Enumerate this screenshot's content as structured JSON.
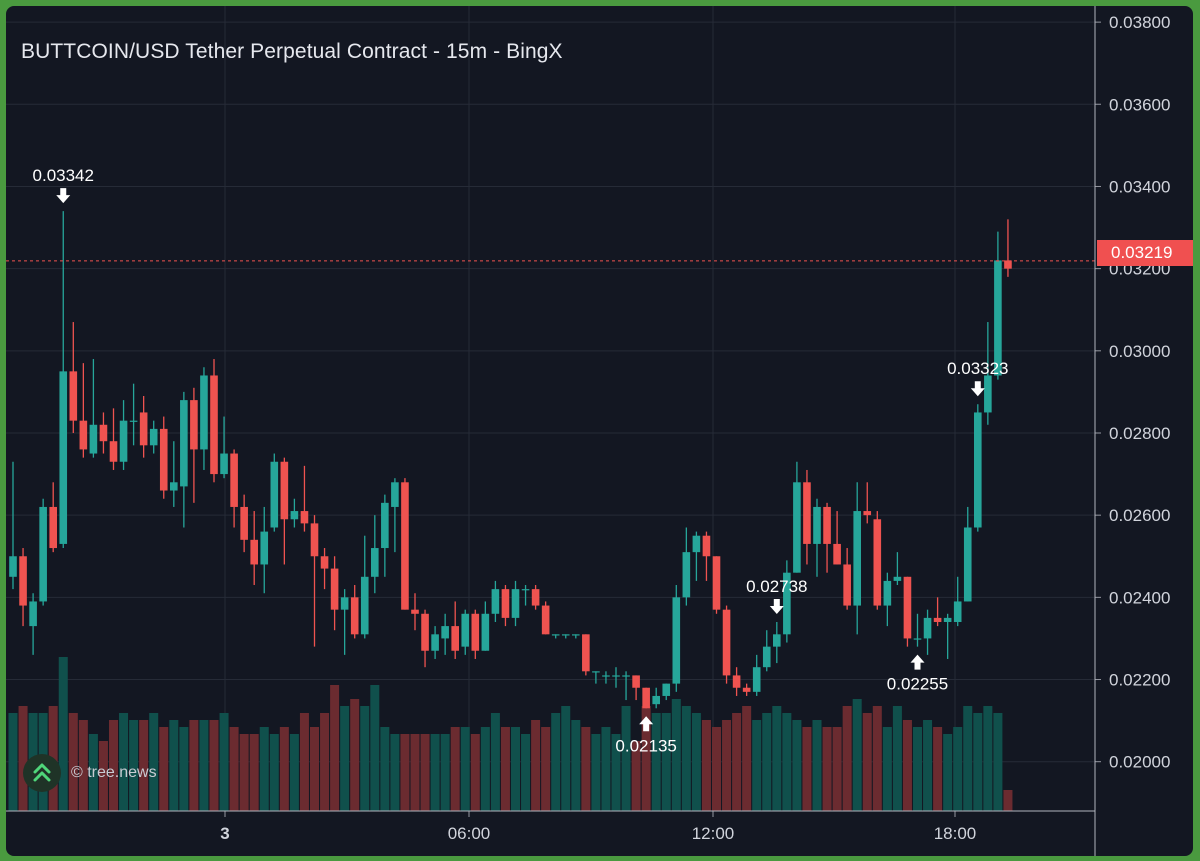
{
  "title": "BUTTCOIN/USD Tether Perpetual Contract - 15m - BingX",
  "watermark": {
    "text": "© tree.news",
    "icon": "tree-news-logo-icon"
  },
  "colors": {
    "background": "#131722",
    "up": "#26a69a",
    "down": "#ef5350",
    "volume_up": "#10504c",
    "volume_down": "#6b2b30",
    "grid": "#262b37",
    "price_line": "#ef5350"
  },
  "chart_data": {
    "type": "candlestick",
    "interval": "15m",
    "xlabel": "",
    "ylabel": "",
    "ylim": [
      0.0188,
      0.0381
    ],
    "y_ticks": [
      "0.02000",
      "0.02200",
      "0.02400",
      "0.02600",
      "0.02800",
      "0.03000",
      "0.03200",
      "0.03400",
      "0.03600",
      "0.03800"
    ],
    "x_ticks": [
      "3",
      "06:00",
      "12:00",
      "18:00"
    ],
    "current_price": "0.03219",
    "annotations": [
      {
        "label": "0.03342",
        "type": "high",
        "index": 5
      },
      {
        "label": "0.02135",
        "type": "low",
        "index": 63
      },
      {
        "label": "0.02738",
        "type": "high",
        "index": 76
      },
      {
        "label": "0.02255",
        "type": "low",
        "index": 90
      },
      {
        "label": "0.03323",
        "type": "high",
        "index": 96
      }
    ],
    "candles": [
      [
        0.0245,
        0.025,
        0.0273,
        0.0242,
        0.7
      ],
      [
        0.025,
        0.0238,
        0.0252,
        0.0233,
        0.75
      ],
      [
        0.0233,
        0.0239,
        0.0241,
        0.0226,
        0.7
      ],
      [
        0.0239,
        0.0262,
        0.0264,
        0.0238,
        0.7
      ],
      [
        0.0262,
        0.0252,
        0.0268,
        0.0251,
        0.75
      ],
      [
        0.0253,
        0.0295,
        0.0334,
        0.0252,
        1.1
      ],
      [
        0.0295,
        0.0283,
        0.0307,
        0.028,
        0.7
      ],
      [
        0.0283,
        0.0276,
        0.0297,
        0.0274,
        0.65
      ],
      [
        0.0275,
        0.0282,
        0.0298,
        0.0274,
        0.55
      ],
      [
        0.0282,
        0.0278,
        0.0285,
        0.0275,
        0.5
      ],
      [
        0.0278,
        0.0273,
        0.0286,
        0.0271,
        0.65
      ],
      [
        0.0273,
        0.0283,
        0.0288,
        0.0271,
        0.7
      ],
      [
        0.0283,
        0.0283,
        0.0292,
        0.0277,
        0.65
      ],
      [
        0.0285,
        0.0277,
        0.0289,
        0.0274,
        0.65
      ],
      [
        0.0277,
        0.0281,
        0.0283,
        0.0275,
        0.7
      ],
      [
        0.0281,
        0.0266,
        0.0284,
        0.0264,
        0.6
      ],
      [
        0.0266,
        0.0268,
        0.0278,
        0.0262,
        0.65
      ],
      [
        0.0267,
        0.0288,
        0.029,
        0.0257,
        0.6
      ],
      [
        0.0288,
        0.0276,
        0.0291,
        0.0263,
        0.65
      ],
      [
        0.0276,
        0.0294,
        0.0296,
        0.0271,
        0.65
      ],
      [
        0.0294,
        0.027,
        0.0298,
        0.0268,
        0.65
      ],
      [
        0.027,
        0.0275,
        0.0284,
        0.0269,
        0.7
      ],
      [
        0.0275,
        0.0262,
        0.0276,
        0.0257,
        0.6
      ],
      [
        0.0262,
        0.0254,
        0.0265,
        0.0251,
        0.55
      ],
      [
        0.0254,
        0.0248,
        0.0261,
        0.0243,
        0.55
      ],
      [
        0.0248,
        0.0256,
        0.0262,
        0.0241,
        0.6
      ],
      [
        0.0257,
        0.0273,
        0.0275,
        0.0256,
        0.55
      ],
      [
        0.0273,
        0.0259,
        0.0274,
        0.0248,
        0.6
      ],
      [
        0.0259,
        0.0261,
        0.0264,
        0.0257,
        0.55
      ],
      [
        0.0261,
        0.0258,
        0.0272,
        0.0256,
        0.7
      ],
      [
        0.0258,
        0.025,
        0.026,
        0.0228,
        0.6
      ],
      [
        0.025,
        0.0247,
        0.0252,
        0.0242,
        0.7
      ],
      [
        0.0247,
        0.0237,
        0.025,
        0.0232,
        0.9
      ],
      [
        0.0237,
        0.024,
        0.0242,
        0.0226,
        0.75
      ],
      [
        0.024,
        0.0231,
        0.0243,
        0.023,
        0.8
      ],
      [
        0.0231,
        0.0245,
        0.0255,
        0.023,
        0.75
      ],
      [
        0.0245,
        0.0252,
        0.026,
        0.0241,
        0.9
      ],
      [
        0.0252,
        0.0263,
        0.0265,
        0.0245,
        0.6
      ],
      [
        0.0262,
        0.0268,
        0.0269,
        0.0251,
        0.55
      ],
      [
        0.0268,
        0.0237,
        0.0269,
        0.0237,
        0.55
      ],
      [
        0.0237,
        0.0236,
        0.0241,
        0.0232,
        0.55
      ],
      [
        0.0236,
        0.0227,
        0.0237,
        0.0223,
        0.55
      ],
      [
        0.0227,
        0.0231,
        0.0233,
        0.0225,
        0.55
      ],
      [
        0.023,
        0.0233,
        0.0236,
        0.0226,
        0.55
      ],
      [
        0.0233,
        0.0227,
        0.0239,
        0.0225,
        0.6
      ],
      [
        0.0228,
        0.0236,
        0.0237,
        0.0226,
        0.6
      ],
      [
        0.0236,
        0.0227,
        0.0237,
        0.0225,
        0.55
      ],
      [
        0.0227,
        0.0236,
        0.0239,
        0.0227,
        0.6
      ],
      [
        0.0236,
        0.0242,
        0.0244,
        0.0234,
        0.7
      ],
      [
        0.0242,
        0.0235,
        0.0243,
        0.0233,
        0.6
      ],
      [
        0.0235,
        0.0242,
        0.0244,
        0.0233,
        0.6
      ],
      [
        0.0242,
        0.0242,
        0.0243,
        0.0238,
        0.55
      ],
      [
        0.0242,
        0.0238,
        0.0243,
        0.0237,
        0.65
      ],
      [
        0.0238,
        0.0231,
        0.0239,
        0.0231,
        0.6
      ],
      [
        0.0231,
        0.0231,
        0.0231,
        0.023,
        0.7
      ],
      [
        0.0231,
        0.0231,
        0.0231,
        0.023,
        0.75
      ],
      [
        0.0231,
        0.0231,
        0.0231,
        0.023,
        0.65
      ],
      [
        0.0231,
        0.0222,
        0.0231,
        0.0221,
        0.6
      ],
      [
        0.0222,
        0.0222,
        0.0222,
        0.0219,
        0.55
      ],
      [
        0.0221,
        0.0221,
        0.0222,
        0.0219,
        0.6
      ],
      [
        0.0221,
        0.0221,
        0.0223,
        0.0218,
        0.55
      ],
      [
        0.0221,
        0.0221,
        0.0222,
        0.0215,
        0.75
      ],
      [
        0.0221,
        0.0218,
        0.0221,
        0.0215,
        0.5
      ],
      [
        0.0218,
        0.0213,
        0.0218,
        0.0213,
        0.75
      ],
      [
        0.0214,
        0.0216,
        0.0218,
        0.0213,
        0.7
      ],
      [
        0.0216,
        0.0219,
        0.0219,
        0.0215,
        0.7
      ],
      [
        0.0219,
        0.024,
        0.0243,
        0.0217,
        0.8
      ],
      [
        0.024,
        0.0251,
        0.0257,
        0.0238,
        0.75
      ],
      [
        0.0251,
        0.0255,
        0.0256,
        0.0244,
        0.7
      ],
      [
        0.0255,
        0.025,
        0.0256,
        0.0244,
        0.65
      ],
      [
        0.025,
        0.0237,
        0.025,
        0.0236,
        0.6
      ],
      [
        0.0237,
        0.0221,
        0.0238,
        0.0219,
        0.65
      ],
      [
        0.0221,
        0.0218,
        0.0223,
        0.0216,
        0.7
      ],
      [
        0.0218,
        0.0217,
        0.0219,
        0.0216,
        0.75
      ],
      [
        0.0217,
        0.0223,
        0.0226,
        0.0216,
        0.65
      ],
      [
        0.0223,
        0.0228,
        0.0232,
        0.0222,
        0.7
      ],
      [
        0.0228,
        0.0231,
        0.0234,
        0.0224,
        0.75
      ],
      [
        0.0231,
        0.0246,
        0.0249,
        0.0229,
        0.7
      ],
      [
        0.0246,
        0.0268,
        0.0273,
        0.0246,
        0.65
      ],
      [
        0.0268,
        0.0253,
        0.0271,
        0.0248,
        0.6
      ],
      [
        0.0253,
        0.0262,
        0.0264,
        0.0245,
        0.65
      ],
      [
        0.0262,
        0.0253,
        0.0263,
        0.0246,
        0.6
      ],
      [
        0.0253,
        0.0248,
        0.0261,
        0.0248,
        0.6
      ],
      [
        0.0248,
        0.0238,
        0.0252,
        0.0237,
        0.75
      ],
      [
        0.0238,
        0.0261,
        0.0268,
        0.0231,
        0.8
      ],
      [
        0.0261,
        0.026,
        0.0268,
        0.0258,
        0.7
      ],
      [
        0.0259,
        0.0238,
        0.0261,
        0.0237,
        0.75
      ],
      [
        0.0238,
        0.0244,
        0.0246,
        0.0233,
        0.6
      ],
      [
        0.0244,
        0.0245,
        0.0251,
        0.0243,
        0.75
      ],
      [
        0.0245,
        0.023,
        0.0245,
        0.0228,
        0.65
      ],
      [
        0.023,
        0.023,
        0.0236,
        0.0228,
        0.6
      ],
      [
        0.023,
        0.0235,
        0.0237,
        0.0226,
        0.65
      ],
      [
        0.0235,
        0.0234,
        0.024,
        0.0233,
        0.6
      ],
      [
        0.0234,
        0.0235,
        0.0236,
        0.0225,
        0.55
      ],
      [
        0.0234,
        0.0239,
        0.0245,
        0.0233,
        0.6
      ],
      [
        0.0239,
        0.0257,
        0.0262,
        0.0239,
        0.75
      ],
      [
        0.0257,
        0.0285,
        0.0287,
        0.0256,
        0.7
      ],
      [
        0.0285,
        0.0294,
        0.0307,
        0.0282,
        0.75
      ],
      [
        0.0294,
        0.0322,
        0.0329,
        0.0293,
        0.7
      ],
      [
        0.0322,
        0.032,
        0.0332,
        0.0318,
        0.15
      ]
    ]
  }
}
